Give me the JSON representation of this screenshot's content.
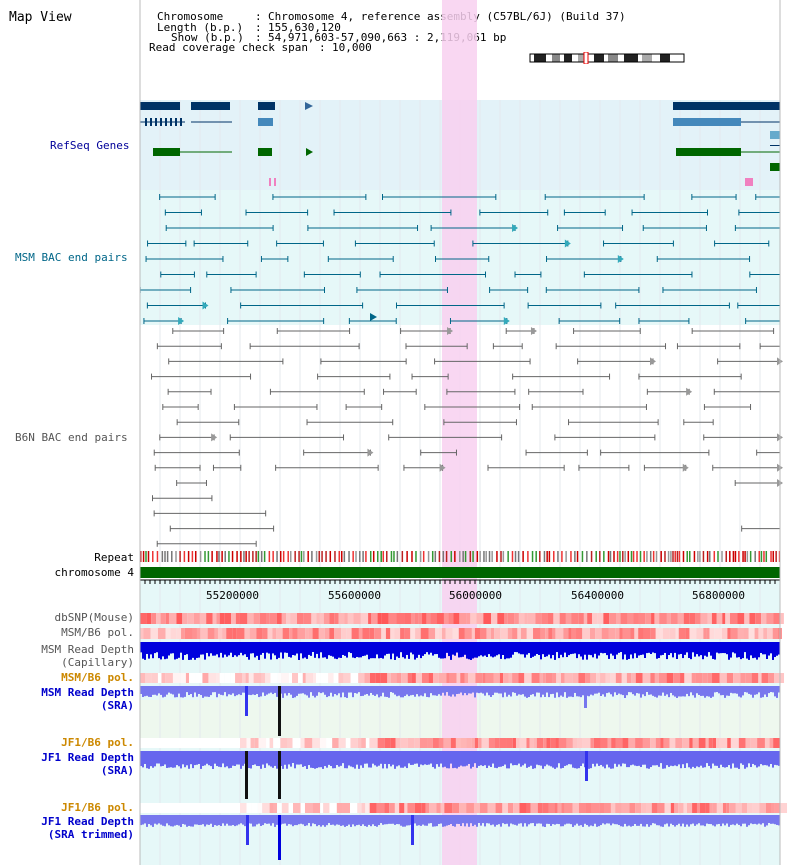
{
  "page_title": "Map View",
  "info": {
    "chromosome_label": "Chromosome",
    "chromosome_value": "Chromosome 4, reference assembly (C57BL/6J) (Build 37)",
    "length_label": "Length (b.p.)",
    "length_value": "155,630,120",
    "show_label": "Show (b.p.)",
    "show_value": "54,971,603-57,090,663 : 2,119,061 bp",
    "coverage_label": "Read coverage check span",
    "coverage_value": "10,000"
  },
  "tracks": {
    "refseq": "RefSeq Genes",
    "msm_bac": "MSM BAC end pairs",
    "b6n_bac": "B6N BAC end pairs",
    "repeat": "Repeat",
    "chromosome": "chromosome 4",
    "dbsnp": "dbSNP(Mouse)",
    "msm_b6_pol_1": "MSM/B6 pol.",
    "msm_depth_cap_1": "MSM Read Depth",
    "msm_depth_cap_2": "(Capillary)",
    "msm_b6_pol_2": "MSM/B6 pol.",
    "msm_depth_sra_1": "MSM Read Depth",
    "msm_depth_sra_2": "(SRA)",
    "jf1_b6_pol_1": "JF1/B6 pol.",
    "jf1_depth_sra_1": "JF1 Read Depth",
    "jf1_depth_sra_2": "(SRA)",
    "jf1_b6_pol_2": "JF1/B6 pol.",
    "jf1_depth_trim_1": "JF1 Read Depth",
    "jf1_depth_trim_2": "(SRA trimmed)"
  },
  "axis_ticks": [
    "55200000",
    "55600000",
    "56000000",
    "56400000",
    "56800000"
  ],
  "colors": {
    "refseq_label": "#000099",
    "msm_label": "#006688",
    "gray_label": "#555555",
    "orange_label": "#cc8800",
    "blue_label": "#0000cc",
    "highlight": "#f8d0f0",
    "gene_dark": "#003366",
    "gene_green": "#006600",
    "chrom_bar": "#006600"
  }
}
